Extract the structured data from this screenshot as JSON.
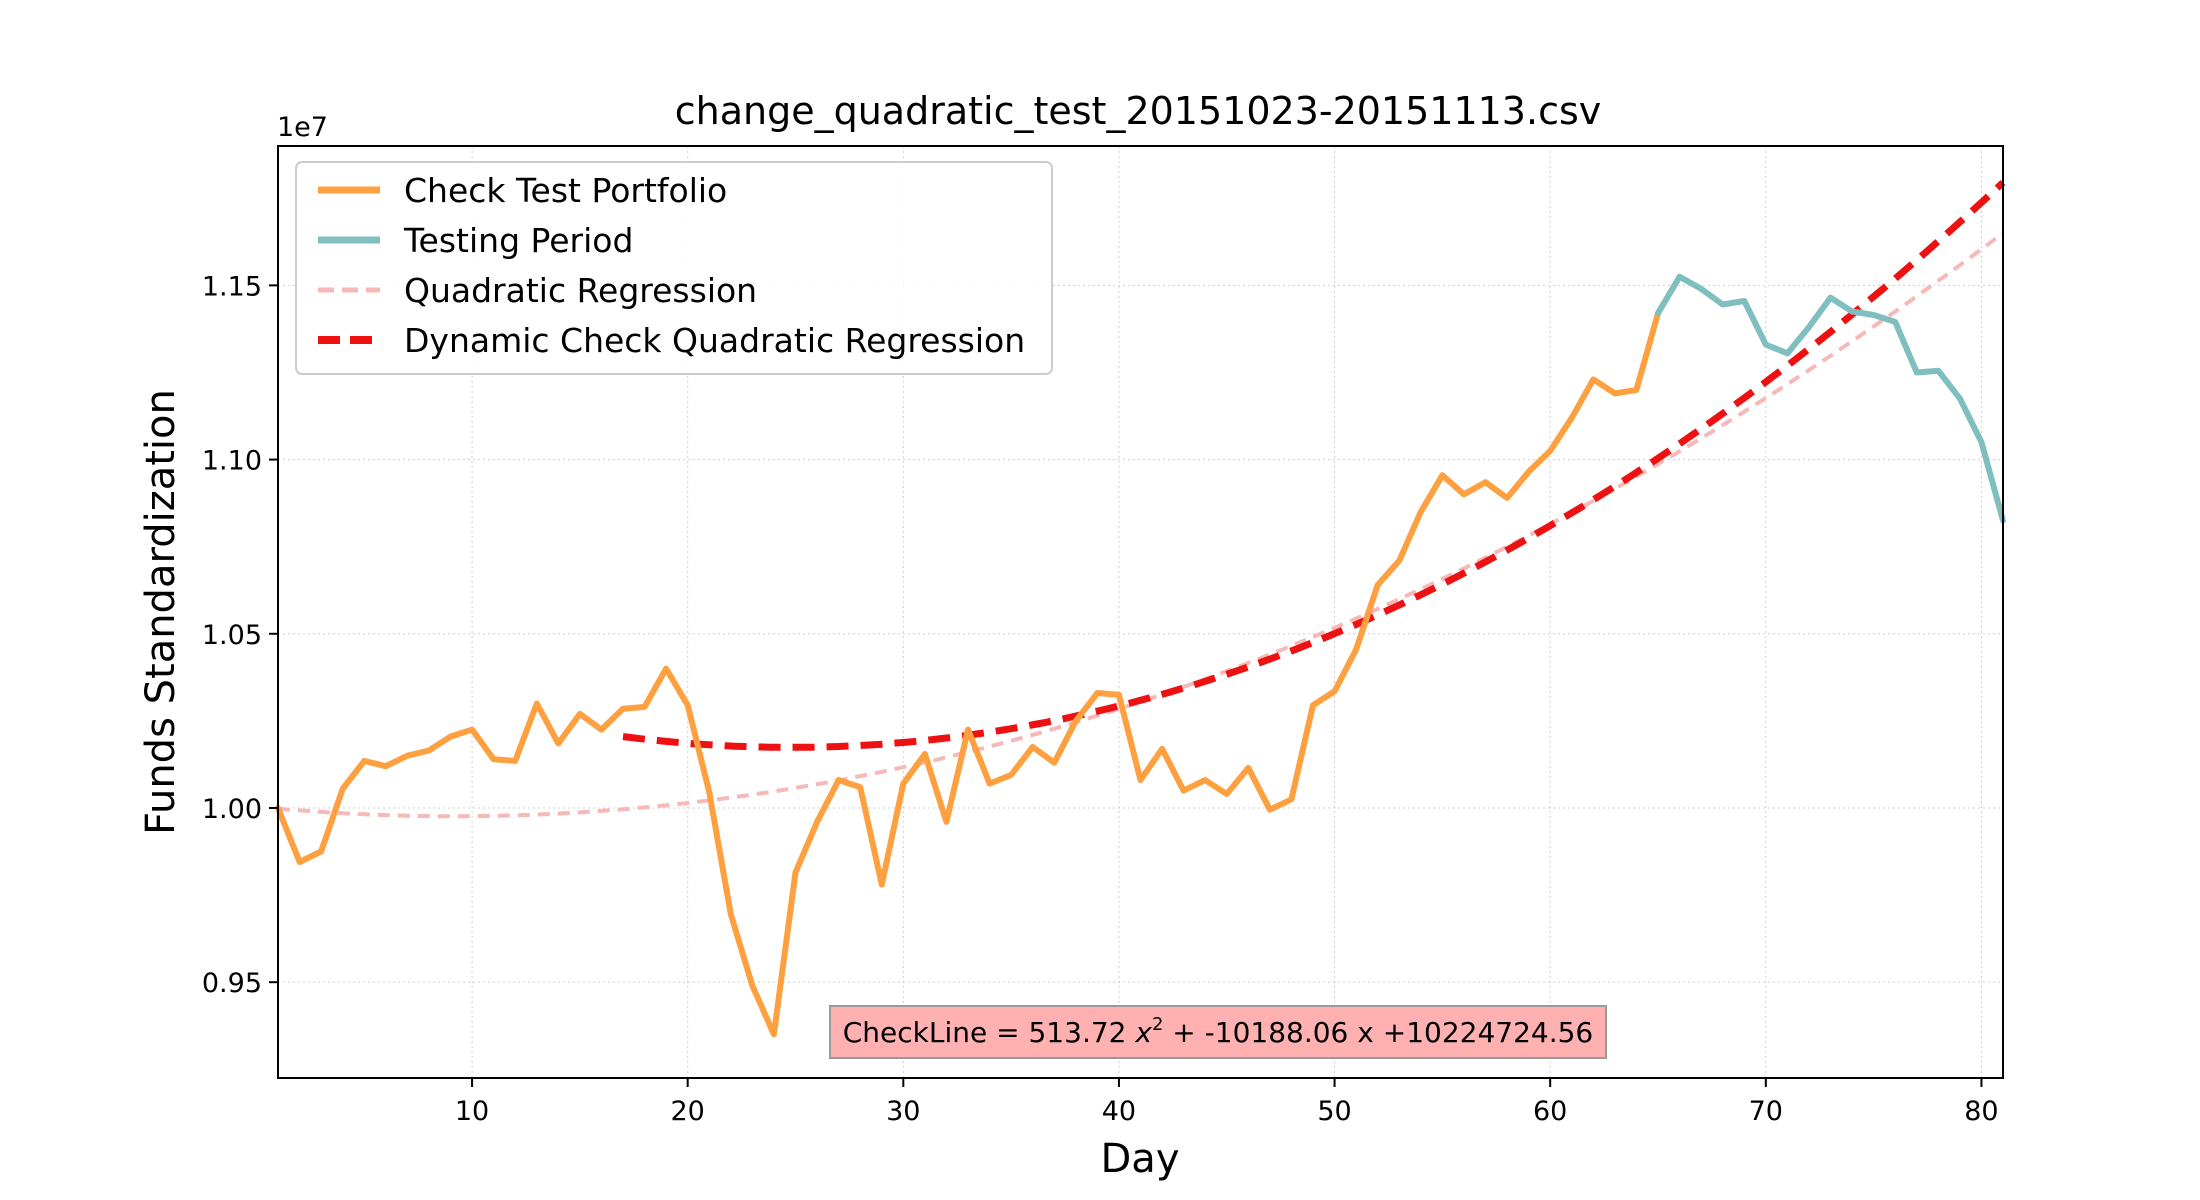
{
  "chart_data": {
    "type": "line",
    "title": "change_quadratic_test_20151023-20151113.csv",
    "xlabel": "Day",
    "ylabel": "Funds Standardization",
    "y_offset_label": "1e7",
    "xlim": [
      1,
      81
    ],
    "ylim": [
      9225000,
      11900000
    ],
    "x_ticks": [
      10,
      20,
      30,
      40,
      50,
      60,
      70,
      80
    ],
    "x_tick_labels": [
      "10",
      "20",
      "30",
      "40",
      "50",
      "60",
      "70",
      "80"
    ],
    "y_ticks": [
      9500000,
      10000000,
      10500000,
      11000000,
      11500000
    ],
    "y_tick_labels": [
      "0.95",
      "1.00",
      "1.05",
      "1.10",
      "1.15"
    ],
    "grid": true,
    "legend_position": "top-left",
    "series": [
      {
        "name": "Check Test Portfolio",
        "color": "#FFA040",
        "style": "solid",
        "x": [
          1,
          2,
          3,
          4,
          5,
          6,
          7,
          8,
          9,
          10,
          11,
          12,
          13,
          14,
          15,
          16,
          17,
          18,
          19,
          20,
          21,
          22,
          23,
          24,
          25,
          26,
          27,
          28,
          29,
          30,
          31,
          32,
          33,
          34,
          35,
          36,
          37,
          38,
          39,
          40,
          41,
          42,
          43,
          44,
          45,
          46,
          47,
          48,
          49,
          50,
          51,
          52,
          53,
          54,
          55,
          56,
          57,
          58,
          59,
          60,
          61,
          62,
          63,
          64,
          65
        ],
        "y": [
          10000000,
          9845000,
          9875000,
          10055000,
          10135000,
          10120000,
          10150000,
          10165000,
          10205000,
          10225000,
          10140000,
          10135000,
          10300000,
          10185000,
          10270000,
          10225000,
          10285000,
          10290000,
          10400000,
          10295000,
          10045000,
          9695000,
          9490000,
          9350000,
          9815000,
          9960000,
          10080000,
          10060000,
          9780000,
          10070000,
          10155000,
          9960000,
          10225000,
          10070000,
          10095000,
          10175000,
          10130000,
          10250000,
          10330000,
          10325000,
          10080000,
          10170000,
          10050000,
          10080000,
          10040000,
          10115000,
          9995000,
          10025000,
          10295000,
          10335000,
          10455000,
          10640000,
          10710000,
          10850000,
          10955000,
          10900000,
          10935000,
          10890000,
          10965000,
          11025000,
          11120000,
          11230000,
          11190000,
          11200000,
          11420000
        ]
      },
      {
        "name": "Testing Period",
        "color": "#7FBFBF",
        "style": "solid",
        "x": [
          65,
          66,
          67,
          68,
          69,
          70,
          71,
          72,
          73,
          74,
          75,
          76,
          77,
          78,
          79,
          80,
          81
        ],
        "y": [
          11420000,
          11525000,
          11490000,
          11445000,
          11455000,
          11330000,
          11305000,
          11380000,
          11465000,
          11425000,
          11415000,
          11395000,
          11250000,
          11255000,
          11175000,
          11050000,
          10825000
        ]
      },
      {
        "name": "Quadratic Regression",
        "color": "#F7B8B8",
        "style": "dashed",
        "fit": "quadratic",
        "x_range": [
          1,
          81
        ],
        "anchor_points": {
          "x": [
            1,
            41,
            81
          ],
          "y": [
            9998000,
            10305000,
            11650000
          ]
        }
      },
      {
        "name": "Dynamic Check Quadratic Regression",
        "color": "#EE1111",
        "style": "dashed",
        "fit": "quadratic",
        "x_range": [
          17,
          81
        ],
        "anchor_points": {
          "x": [
            17,
            49,
            81
          ],
          "y": [
            10205000,
            10475000,
            11795000
          ]
        }
      }
    ],
    "annotation": {
      "prefix": "CheckLine = 513.72 ",
      "var": "x",
      "exp": "2",
      "suffix": " + -10188.06 x +10224724.56",
      "background": "#FFB0B0"
    }
  }
}
